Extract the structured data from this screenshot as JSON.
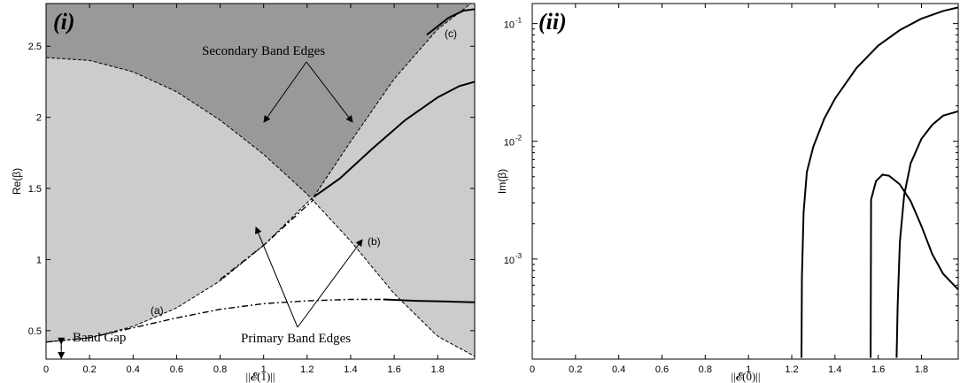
{
  "chart_data": [
    {
      "type": "line",
      "panel_label": "(i)",
      "xlabel": "||𝓔(1)||",
      "ylabel": "Re(β)",
      "xlim": [
        0,
        1.97
      ],
      "ylim": [
        0.3,
        2.8
      ],
      "xticks": [
        "0",
        "0.2",
        "0.4",
        "0.6",
        "0.8",
        "1",
        "1.2",
        "1.4",
        "1.6",
        "1.8"
      ],
      "xtick_values": [
        0,
        0.2,
        0.4,
        0.6,
        0.8,
        1,
        1.2,
        1.4,
        1.6,
        1.8
      ],
      "yticks": [
        "0.5",
        "1",
        "1.5",
        "2",
        "2.5"
      ],
      "ytick_values": [
        0.5,
        1,
        1.5,
        2,
        2.5
      ],
      "colors": {
        "light_region": "#cccccc",
        "dark_region": "#999999",
        "curve": "#000000"
      },
      "band_edges": {
        "upper_primary": {
          "x": [
            0,
            0.2,
            0.4,
            0.6,
            0.8,
            1.0,
            1.2,
            1.4,
            1.6,
            1.8,
            1.97
          ],
          "y": [
            2.42,
            2.4,
            2.32,
            2.18,
            1.98,
            1.74,
            1.46,
            1.13,
            0.76,
            0.46,
            0.32
          ]
        },
        "lower_primary": {
          "x": [
            0,
            0.2,
            0.4,
            0.6,
            0.8,
            1.0,
            1.2,
            1.23,
            1.4,
            1.6,
            1.8,
            1.97
          ],
          "y": [
            0.42,
            0.45,
            0.53,
            0.66,
            0.85,
            1.1,
            1.4,
            1.44,
            1.83,
            2.27,
            2.62,
            2.82
          ]
        }
      },
      "series": [
        {
          "label": "(a)",
          "style": "dash-dot",
          "x": [
            0,
            0.2,
            0.4,
            0.6,
            0.8,
            1.0,
            1.2,
            1.4,
            1.55
          ],
          "y": [
            0.42,
            0.45,
            0.52,
            0.59,
            0.65,
            0.69,
            0.71,
            0.72,
            0.72
          ]
        },
        {
          "label": "(a)",
          "style": "solid",
          "x": [
            1.55,
            1.7,
            1.85,
            1.97
          ],
          "y": [
            0.72,
            0.71,
            0.705,
            0.7
          ]
        },
        {
          "label": "(b)",
          "style": "dash-dot",
          "x": [
            0.8,
            1.0,
            1.1,
            1.2,
            1.23
          ],
          "y": [
            0.86,
            1.1,
            1.24,
            1.38,
            1.42
          ]
        },
        {
          "label": "(b)",
          "style": "solid",
          "x": [
            1.23,
            1.35,
            1.5,
            1.65,
            1.8,
            1.9,
            1.97
          ],
          "y": [
            1.44,
            1.57,
            1.78,
            1.98,
            2.14,
            2.22,
            2.25
          ]
        },
        {
          "label": "(c)",
          "style": "solid",
          "x": [
            1.75,
            1.85,
            1.92,
            1.97
          ],
          "y": [
            2.58,
            2.7,
            2.75,
            2.76
          ]
        }
      ],
      "annotations": {
        "secondary": "Secondary Band Edges",
        "primary": "Primary Band Edges",
        "band_gap": "Band Gap",
        "curve_a": "(a)",
        "curve_b": "(b)",
        "curve_c": "(c)"
      }
    },
    {
      "type": "line",
      "panel_label": "(ii)",
      "xlabel": "||𝓔(0)||",
      "ylabel": "Im(β)",
      "xlim": [
        0,
        1.97
      ],
      "ylim_log10": [
        -3.85,
        -0.83
      ],
      "log_y": true,
      "xticks": [
        "0",
        "0.2",
        "0.4",
        "0.6",
        "0.8",
        "1",
        "1.2",
        "1.4",
        "1.6",
        "1.8"
      ],
      "xtick_values": [
        0,
        0.2,
        0.4,
        0.6,
        0.8,
        1,
        1.2,
        1.4,
        1.6,
        1.8
      ],
      "ytick_values_log10": [
        -3,
        -2,
        -1
      ],
      "ytick_base": "10",
      "ytick_exps": [
        "-3",
        "-2",
        "-1"
      ],
      "series": [
        {
          "x": [
            1.245,
            1.247,
            1.255,
            1.27,
            1.3,
            1.35,
            1.4,
            1.5,
            1.6,
            1.7,
            1.8,
            1.9,
            1.97
          ],
          "y": [
            0.000145,
            0.0007,
            0.0025,
            0.0055,
            0.009,
            0.0155,
            0.023,
            0.042,
            0.065,
            0.088,
            0.11,
            0.128,
            0.137
          ]
        },
        {
          "x": [
            1.565,
            1.567,
            1.59,
            1.62,
            1.65,
            1.7,
            1.75,
            1.8,
            1.85,
            1.9,
            1.97
          ],
          "y": [
            0.000145,
            0.0032,
            0.0046,
            0.0052,
            0.0051,
            0.0043,
            0.0031,
            0.0019,
            0.0011,
            0.00075,
            0.00055
          ]
        },
        {
          "x": [
            1.685,
            1.69,
            1.7,
            1.72,
            1.75,
            1.8,
            1.85,
            1.9,
            1.97
          ],
          "y": [
            0.000145,
            0.0004,
            0.0014,
            0.0035,
            0.0065,
            0.0105,
            0.0138,
            0.0165,
            0.018
          ]
        }
      ]
    }
  ]
}
